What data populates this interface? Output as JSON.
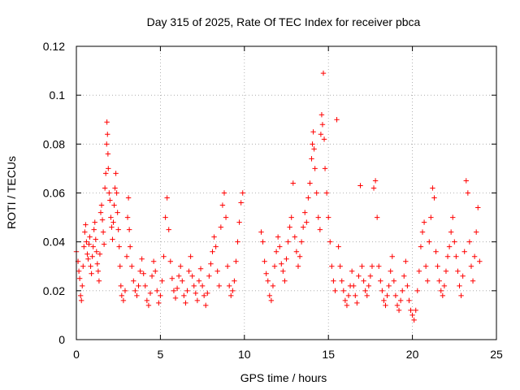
{
  "chart_data": {
    "type": "scatter",
    "title": "Day 315 of 2025, Rate Of TEC Index for receiver pbca",
    "xlabel": "GPS time / hours",
    "ylabel": "ROTI / TECUs",
    "xlim": [
      0,
      25
    ],
    "ylim": [
      0,
      0.12
    ],
    "x_ticks": [
      "0",
      "5",
      "10",
      "15",
      "20",
      "25"
    ],
    "y_ticks": [
      "0",
      "0.02",
      "0.04",
      "0.06",
      "0.08",
      "0.1",
      "0.12"
    ],
    "grid": true,
    "marker": "plus",
    "colors": {
      "points": "#ff0000",
      "grid": "#a0a0a0",
      "frame": "#000000"
    },
    "series": [
      {
        "values_note_free": true,
        "points": [
          [
            0.0,
            0.036
          ],
          [
            0.1,
            0.032
          ],
          [
            0.15,
            0.028
          ],
          [
            0.2,
            0.025
          ],
          [
            0.25,
            0.018
          ],
          [
            0.3,
            0.016
          ],
          [
            0.35,
            0.022
          ],
          [
            0.4,
            0.03
          ],
          [
            0.45,
            0.038
          ],
          [
            0.5,
            0.044
          ],
          [
            0.55,
            0.047
          ],
          [
            0.6,
            0.04
          ],
          [
            0.65,
            0.035
          ],
          [
            0.7,
            0.033
          ],
          [
            0.75,
            0.039
          ],
          [
            0.8,
            0.042
          ],
          [
            0.85,
            0.03
          ],
          [
            0.9,
            0.027
          ],
          [
            0.95,
            0.034
          ],
          [
            1.0,
            0.038
          ],
          [
            1.05,
            0.045
          ],
          [
            1.1,
            0.048
          ],
          [
            1.15,
            0.041
          ],
          [
            1.2,
            0.036
          ],
          [
            1.25,
            0.031
          ],
          [
            1.3,
            0.028
          ],
          [
            1.35,
            0.024
          ],
          [
            1.4,
            0.035
          ],
          [
            1.45,
            0.052
          ],
          [
            1.5,
            0.055
          ],
          [
            1.55,
            0.049
          ],
          [
            1.6,
            0.044
          ],
          [
            1.65,
            0.039
          ],
          [
            1.7,
            0.062
          ],
          [
            1.75,
            0.068
          ],
          [
            1.8,
            0.08
          ],
          [
            1.82,
            0.089
          ],
          [
            1.85,
            0.084
          ],
          [
            1.88,
            0.076
          ],
          [
            1.9,
            0.07
          ],
          [
            1.95,
            0.06
          ],
          [
            2.0,
            0.057
          ],
          [
            2.05,
            0.05
          ],
          [
            2.1,
            0.046
          ],
          [
            2.15,
            0.041
          ],
          [
            2.2,
            0.048
          ],
          [
            2.25,
            0.055
          ],
          [
            2.3,
            0.062
          ],
          [
            2.35,
            0.068
          ],
          [
            2.4,
            0.06
          ],
          [
            2.45,
            0.052
          ],
          [
            2.5,
            0.045
          ],
          [
            2.55,
            0.038
          ],
          [
            2.6,
            0.03
          ],
          [
            2.65,
            0.022
          ],
          [
            2.7,
            0.018
          ],
          [
            2.8,
            0.016
          ],
          [
            2.9,
            0.02
          ],
          [
            3.0,
            0.034
          ],
          [
            3.05,
            0.05
          ],
          [
            3.1,
            0.058
          ],
          [
            3.15,
            0.045
          ],
          [
            3.2,
            0.038
          ],
          [
            3.3,
            0.03
          ],
          [
            3.4,
            0.024
          ],
          [
            3.5,
            0.02
          ],
          [
            3.6,
            0.018
          ],
          [
            3.7,
            0.022
          ],
          [
            3.8,
            0.028
          ],
          [
            3.9,
            0.033
          ],
          [
            4.0,
            0.027
          ],
          [
            4.1,
            0.022
          ],
          [
            4.2,
            0.016
          ],
          [
            4.3,
            0.014
          ],
          [
            4.4,
            0.019
          ],
          [
            4.5,
            0.026
          ],
          [
            4.6,
            0.032
          ],
          [
            4.7,
            0.028
          ],
          [
            4.8,
            0.02
          ],
          [
            4.9,
            0.015
          ],
          [
            5.0,
            0.018
          ],
          [
            5.1,
            0.024
          ],
          [
            5.2,
            0.034
          ],
          [
            5.3,
            0.05
          ],
          [
            5.4,
            0.058
          ],
          [
            5.5,
            0.045
          ],
          [
            5.6,
            0.032
          ],
          [
            5.7,
            0.025
          ],
          [
            5.8,
            0.02
          ],
          [
            5.9,
            0.017
          ],
          [
            6.0,
            0.021
          ],
          [
            6.1,
            0.026
          ],
          [
            6.2,
            0.03
          ],
          [
            6.3,
            0.024
          ],
          [
            6.4,
            0.018
          ],
          [
            6.5,
            0.015
          ],
          [
            6.6,
            0.02
          ],
          [
            6.7,
            0.028
          ],
          [
            6.8,
            0.034
          ],
          [
            6.9,
            0.026
          ],
          [
            7.0,
            0.022
          ],
          [
            7.1,
            0.019
          ],
          [
            7.2,
            0.016
          ],
          [
            7.3,
            0.024
          ],
          [
            7.4,
            0.029
          ],
          [
            7.5,
            0.022
          ],
          [
            7.6,
            0.018
          ],
          [
            7.7,
            0.014
          ],
          [
            7.8,
            0.019
          ],
          [
            7.9,
            0.026
          ],
          [
            8.0,
            0.031
          ],
          [
            8.1,
            0.036
          ],
          [
            8.2,
            0.042
          ],
          [
            8.3,
            0.038
          ],
          [
            8.4,
            0.028
          ],
          [
            8.5,
            0.022
          ],
          [
            8.6,
            0.046
          ],
          [
            8.7,
            0.055
          ],
          [
            8.8,
            0.06
          ],
          [
            8.9,
            0.05
          ],
          [
            9.0,
            0.03
          ],
          [
            9.1,
            0.022
          ],
          [
            9.2,
            0.018
          ],
          [
            9.3,
            0.02
          ],
          [
            9.4,
            0.024
          ],
          [
            9.5,
            0.032
          ],
          [
            9.6,
            0.04
          ],
          [
            9.7,
            0.048
          ],
          [
            9.8,
            0.056
          ],
          [
            9.9,
            0.06
          ],
          [
            11.0,
            0.044
          ],
          [
            11.1,
            0.04
          ],
          [
            11.2,
            0.032
          ],
          [
            11.3,
            0.027
          ],
          [
            11.4,
            0.024
          ],
          [
            11.5,
            0.018
          ],
          [
            11.6,
            0.016
          ],
          [
            11.7,
            0.022
          ],
          [
            11.8,
            0.03
          ],
          [
            11.9,
            0.036
          ],
          [
            12.0,
            0.042
          ],
          [
            12.1,
            0.038
          ],
          [
            12.2,
            0.031
          ],
          [
            12.3,
            0.028
          ],
          [
            12.4,
            0.024
          ],
          [
            12.5,
            0.033
          ],
          [
            12.6,
            0.04
          ],
          [
            12.7,
            0.046
          ],
          [
            12.8,
            0.05
          ],
          [
            12.9,
            0.064
          ],
          [
            13.0,
            0.042
          ],
          [
            13.1,
            0.036
          ],
          [
            13.2,
            0.03
          ],
          [
            13.3,
            0.034
          ],
          [
            13.4,
            0.04
          ],
          [
            13.5,
            0.046
          ],
          [
            13.6,
            0.052
          ],
          [
            13.7,
            0.048
          ],
          [
            13.8,
            0.058
          ],
          [
            13.9,
            0.064
          ],
          [
            14.0,
            0.074
          ],
          [
            14.05,
            0.08
          ],
          [
            14.1,
            0.085
          ],
          [
            14.15,
            0.078
          ],
          [
            14.2,
            0.07
          ],
          [
            14.3,
            0.06
          ],
          [
            14.4,
            0.05
          ],
          [
            14.5,
            0.045
          ],
          [
            14.55,
            0.084
          ],
          [
            14.6,
            0.092
          ],
          [
            14.65,
            0.088
          ],
          [
            14.7,
            0.109
          ],
          [
            14.75,
            0.082
          ],
          [
            14.8,
            0.07
          ],
          [
            14.9,
            0.06
          ],
          [
            15.0,
            0.05
          ],
          [
            15.1,
            0.04
          ],
          [
            15.2,
            0.03
          ],
          [
            15.3,
            0.024
          ],
          [
            15.4,
            0.02
          ],
          [
            15.5,
            0.09
          ],
          [
            15.6,
            0.038
          ],
          [
            15.7,
            0.03
          ],
          [
            15.8,
            0.024
          ],
          [
            15.9,
            0.02
          ],
          [
            16.0,
            0.016
          ],
          [
            16.1,
            0.014
          ],
          [
            16.2,
            0.018
          ],
          [
            16.3,
            0.022
          ],
          [
            16.4,
            0.028
          ],
          [
            16.5,
            0.022
          ],
          [
            16.6,
            0.018
          ],
          [
            16.7,
            0.015
          ],
          [
            16.8,
            0.026
          ],
          [
            16.9,
            0.063
          ],
          [
            17.0,
            0.03
          ],
          [
            17.1,
            0.024
          ],
          [
            17.2,
            0.02
          ],
          [
            17.3,
            0.018
          ],
          [
            17.4,
            0.022
          ],
          [
            17.5,
            0.026
          ],
          [
            17.6,
            0.03
          ],
          [
            17.7,
            0.062
          ],
          [
            17.8,
            0.065
          ],
          [
            17.9,
            0.05
          ],
          [
            18.0,
            0.03
          ],
          [
            18.1,
            0.024
          ],
          [
            18.2,
            0.02
          ],
          [
            18.3,
            0.016
          ],
          [
            18.4,
            0.014
          ],
          [
            18.5,
            0.018
          ],
          [
            18.6,
            0.022
          ],
          [
            18.7,
            0.028
          ],
          [
            18.8,
            0.034
          ],
          [
            18.9,
            0.024
          ],
          [
            19.0,
            0.018
          ],
          [
            19.1,
            0.014
          ],
          [
            19.2,
            0.012
          ],
          [
            19.3,
            0.016
          ],
          [
            19.4,
            0.02
          ],
          [
            19.5,
            0.026
          ],
          [
            19.6,
            0.032
          ],
          [
            19.7,
            0.022
          ],
          [
            19.8,
            0.016
          ],
          [
            19.9,
            0.012
          ],
          [
            20.0,
            0.01
          ],
          [
            20.1,
            0.008
          ],
          [
            20.2,
            0.012
          ],
          [
            20.3,
            0.02
          ],
          [
            20.4,
            0.028
          ],
          [
            20.5,
            0.038
          ],
          [
            20.6,
            0.044
          ],
          [
            20.7,
            0.048
          ],
          [
            20.8,
            0.03
          ],
          [
            20.9,
            0.024
          ],
          [
            21.0,
            0.04
          ],
          [
            21.1,
            0.05
          ],
          [
            21.2,
            0.062
          ],
          [
            21.3,
            0.058
          ],
          [
            21.4,
            0.036
          ],
          [
            21.5,
            0.03
          ],
          [
            21.6,
            0.024
          ],
          [
            21.7,
            0.02
          ],
          [
            21.8,
            0.018
          ],
          [
            21.9,
            0.022
          ],
          [
            22.0,
            0.028
          ],
          [
            22.1,
            0.034
          ],
          [
            22.2,
            0.038
          ],
          [
            22.3,
            0.044
          ],
          [
            22.4,
            0.05
          ],
          [
            22.5,
            0.04
          ],
          [
            22.6,
            0.034
          ],
          [
            22.7,
            0.028
          ],
          [
            22.8,
            0.022
          ],
          [
            22.9,
            0.018
          ],
          [
            23.0,
            0.026
          ],
          [
            23.1,
            0.036
          ],
          [
            23.2,
            0.065
          ],
          [
            23.3,
            0.06
          ],
          [
            23.4,
            0.04
          ],
          [
            23.5,
            0.03
          ],
          [
            23.6,
            0.024
          ],
          [
            23.7,
            0.034
          ],
          [
            23.8,
            0.044
          ],
          [
            23.9,
            0.054
          ],
          [
            24.0,
            0.032
          ]
        ]
      }
    ]
  }
}
